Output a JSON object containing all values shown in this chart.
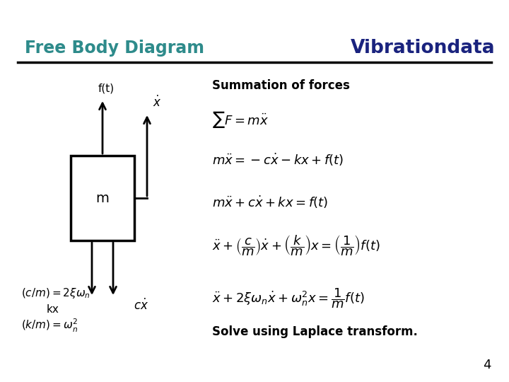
{
  "title_left": "Free Body Diagram",
  "title_right": "Vibrationdata",
  "title_left_color": "#2E8B8B",
  "title_right_color": "#1a237e",
  "bg_color": "#ffffff",
  "line_color": "#000000",
  "solve_text": "Solve using Laplace transform.",
  "page_number": "4",
  "summation_label": "Summation of forces"
}
